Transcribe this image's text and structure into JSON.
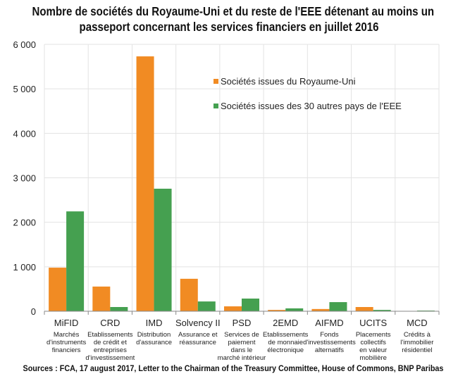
{
  "chart_data": {
    "type": "bar",
    "title_lines": [
      "Nombre de sociétés du Royaume-Uni et du reste de l'EEE détenant au moins un",
      "passeport concernant les services financiers en juillet 2016"
    ],
    "categories": [
      "MiFID",
      "CRD",
      "IMD",
      "Solvency II",
      "PSD",
      "2EMD",
      "AIFMD",
      "UCITS",
      "MCD"
    ],
    "category_descriptions": [
      [
        "Marchés",
        "d'instruments",
        "financiers"
      ],
      [
        "Etablissements",
        "de crédit et",
        "entreprises",
        "d'investissement"
      ],
      [
        "Distribution",
        "d'assurance"
      ],
      [
        "Assurance et",
        "réassurance"
      ],
      [
        "Services de",
        "paiement",
        "dans le",
        "marché intérieur"
      ],
      [
        "Etablissements",
        "de monnaie",
        "électronique"
      ],
      [
        "Fonds",
        "d'investissements",
        "alternatifs"
      ],
      [
        "Placements",
        "collectifs",
        "en valeur",
        "mobilière"
      ],
      [
        "Crédits à",
        "l'immobilier",
        "résidentiel"
      ]
    ],
    "series": [
      {
        "name": "Sociétés issues du Royaume-Uni",
        "color": "#F18B23",
        "values": [
          980,
          555,
          5730,
          730,
          110,
          30,
          50,
          95,
          5
        ]
      },
      {
        "name": "Sociétés issues des 30 autres pays de l'EEE",
        "color": "#45A050",
        "values": [
          2245,
          95,
          2755,
          220,
          285,
          65,
          205,
          30,
          15
        ]
      }
    ],
    "ylim": [
      0,
      6000
    ],
    "yticks": [
      0,
      1000,
      2000,
      3000,
      4000,
      5000,
      6000
    ],
    "ytick_labels": [
      "0",
      "1 000",
      "2 000",
      "3 000",
      "4 000",
      "5 000",
      "6 000"
    ],
    "grid": true,
    "legend_position": "top-right",
    "xlabel": "",
    "ylabel": "",
    "source": "Sources : FCA, 17 august 2017, Letter to the Chairman of the Treasury Committee, House of Commons, BNP Paribas"
  }
}
